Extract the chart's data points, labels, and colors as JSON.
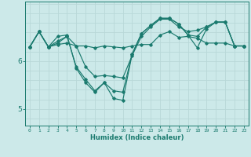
{
  "xlabel": "Humidex (Indice chaleur)",
  "xlim": [
    -0.5,
    23.5
  ],
  "ylim": [
    4.65,
    7.25
  ],
  "yticks": [
    5,
    6
  ],
  "xticks": [
    0,
    1,
    2,
    3,
    4,
    5,
    6,
    7,
    8,
    9,
    10,
    11,
    12,
    13,
    14,
    15,
    16,
    17,
    18,
    19,
    20,
    21,
    22,
    23
  ],
  "background_color": "#cce9e9",
  "grid_color": "#b8d8d8",
  "line_color": "#1a7a6e",
  "series": [
    [
      6.3,
      6.62,
      6.3,
      6.35,
      6.38,
      6.32,
      6.32,
      6.28,
      6.32,
      6.3,
      6.28,
      6.32,
      6.35,
      6.35,
      6.55,
      6.62,
      6.5,
      6.52,
      6.48,
      6.38,
      6.38,
      6.38,
      6.32,
      6.32
    ],
    [
      6.3,
      6.62,
      6.3,
      6.38,
      6.52,
      6.32,
      5.88,
      5.68,
      5.7,
      5.68,
      5.65,
      6.12,
      6.52,
      6.72,
      6.88,
      6.88,
      6.72,
      6.62,
      6.65,
      6.72,
      6.82,
      6.82,
      6.32,
      6.32
    ],
    [
      6.3,
      6.62,
      6.3,
      6.42,
      6.52,
      5.88,
      5.62,
      5.38,
      5.55,
      5.38,
      5.35,
      6.15,
      6.58,
      6.75,
      6.9,
      6.9,
      6.78,
      6.55,
      6.28,
      6.68,
      6.82,
      6.82,
      6.32,
      6.32
    ],
    [
      6.3,
      6.62,
      6.3,
      6.52,
      6.55,
      5.85,
      5.55,
      5.35,
      5.55,
      5.22,
      5.18,
      6.15,
      6.58,
      6.75,
      6.9,
      6.9,
      6.78,
      6.55,
      6.52,
      6.72,
      6.82,
      6.82,
      6.32,
      6.32
    ]
  ]
}
